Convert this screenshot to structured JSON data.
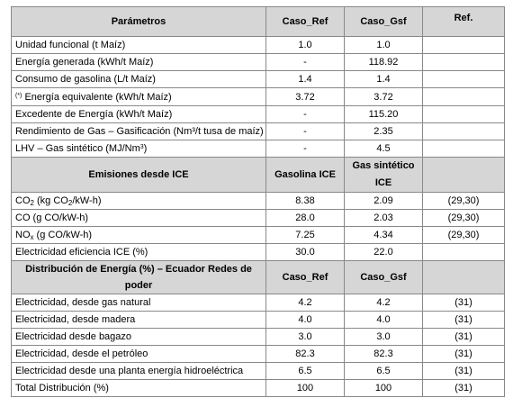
{
  "header1": {
    "parametros": "Parámetros",
    "caso_ref": "Caso_Ref",
    "caso_gsf": "Caso_Gsf",
    "ref": "Ref."
  },
  "params": [
    {
      "label": "Unidad funcional (t Maíz)",
      "ref_val": "1.0",
      "gsf_val": "1.0",
      "cite": ""
    },
    {
      "label": "Energía generada (kWh/t Maíz)",
      "ref_val": "-",
      "gsf_val": "118.92",
      "cite": ""
    },
    {
      "label": "Consumo de gasolina (L/t Maíz)",
      "ref_val": "1.4",
      "gsf_val": "1.4",
      "cite": ""
    },
    {
      "star": "(*)",
      "label": "Energía equivalente  (kWh/t Maíz)",
      "ref_val": "3.72",
      "gsf_val": "3.72",
      "cite": ""
    },
    {
      "label": "Excedente de Energía (kWh/t Maíz)",
      "ref_val": "-",
      "gsf_val": "115.20",
      "cite": ""
    },
    {
      "label": "Rendimiento de Gas – Gasificación (Nm³/t tusa de maíz)",
      "ref_val": "-",
      "gsf_val": "2.35",
      "cite": ""
    },
    {
      "label_pre": "LHV – Gas sintético (MJ/Nm",
      "label_sup": "3",
      "label_post": ")",
      "ref_val": "-",
      "gsf_val": "4.5",
      "cite": ""
    }
  ],
  "header2": {
    "title": "Emisiones desde ICE",
    "col2": "Gasolina ICE",
    "col3_line1": "Gas sintético",
    "col3_line2": "ICE"
  },
  "emissions": [
    {
      "pre": "CO",
      "sub": "2",
      "mid": " (kg CO",
      "sub2": "2",
      "post": "/kW-h)",
      "ref_val": "8.38",
      "gsf_val": "2.09",
      "cite": "(29,30)"
    },
    {
      "pre": "CO (g CO/kW-h)",
      "ref_val": "28.0",
      "gsf_val": "2.03",
      "cite": "(29,30)"
    },
    {
      "pre": "NO",
      "sub": "x",
      "mid": " (g CO/kW-h)",
      "ref_val": "7.25",
      "gsf_val": "4.34",
      "cite": "(29,30)"
    },
    {
      "pre": "Electricidad eficiencia ICE (%)",
      "ref_val": "30.0",
      "gsf_val": "22.0",
      "cite": ""
    }
  ],
  "header3": {
    "line1": "Distribución de Energía  (%) – Ecuador Redes de",
    "line2": "poder",
    "caso_ref": "Caso_Ref",
    "caso_gsf": "Caso_Gsf"
  },
  "distribution": [
    {
      "label": "Electricidad, desde gas natural",
      "ref_val": "4.2",
      "gsf_val": "4.2",
      "cite": "(31)"
    },
    {
      "label": "Electricidad, desde madera",
      "ref_val": "4.0",
      "gsf_val": "4.0",
      "cite": "(31)"
    },
    {
      "label": "Electricidad desde bagazo",
      "ref_val": "3.0",
      "gsf_val": "3.0",
      "cite": "(31)"
    },
    {
      "label": "Electricidad, desde el petróleo",
      "ref_val": "82.3",
      "gsf_val": "82.3",
      "cite": "(31)"
    },
    {
      "label": "Electricidad desde una planta energía hidroeléctrica",
      "ref_val": "6.5",
      "gsf_val": "6.5",
      "cite": "(31)"
    },
    {
      "label": "Total Distribución (%)",
      "ref_val": "100",
      "gsf_val": "100",
      "cite": "(31)"
    }
  ]
}
